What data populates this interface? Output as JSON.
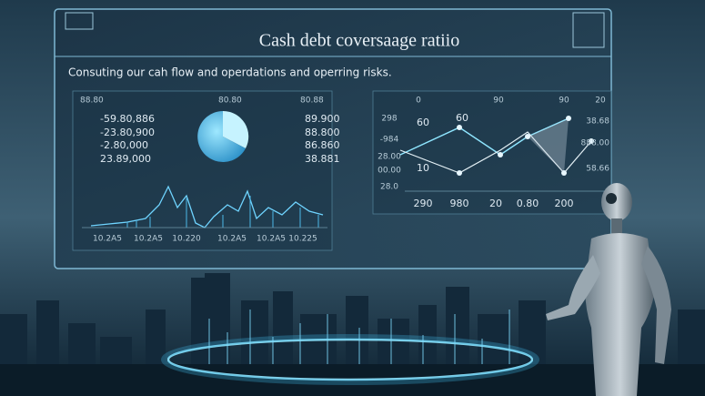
{
  "header": {
    "title": "Cash debt coversaage ratiio",
    "subtitle": "Consuting our cah flow and operdations and operring risks."
  },
  "left_panel": {
    "top_labels": [
      "88.80",
      "80.80",
      "80.88"
    ],
    "values": [
      "-59.80,886",
      "-23.80,900",
      "-2.80,000",
      "23.89,000"
    ],
    "right_values": [
      "89.900",
      "88.800",
      "86.860",
      "38.881"
    ],
    "x_labels": [
      "10.2A5",
      "10.2A5",
      "10.220",
      "10.2A5",
      "10.2A5",
      "10.225"
    ]
  },
  "right_panel": {
    "top_labels": [
      "0",
      "90",
      "90",
      "20"
    ],
    "y_labels": [
      "298",
      "-984",
      "28.00",
      "00.00",
      "28.0"
    ],
    "point_labels": [
      "60",
      "60",
      "10"
    ],
    "right_labels": [
      "38.68",
      "888.00",
      "58.66"
    ],
    "x_labels": [
      "290",
      "980",
      "20",
      "0.80",
      "200"
    ]
  }
}
